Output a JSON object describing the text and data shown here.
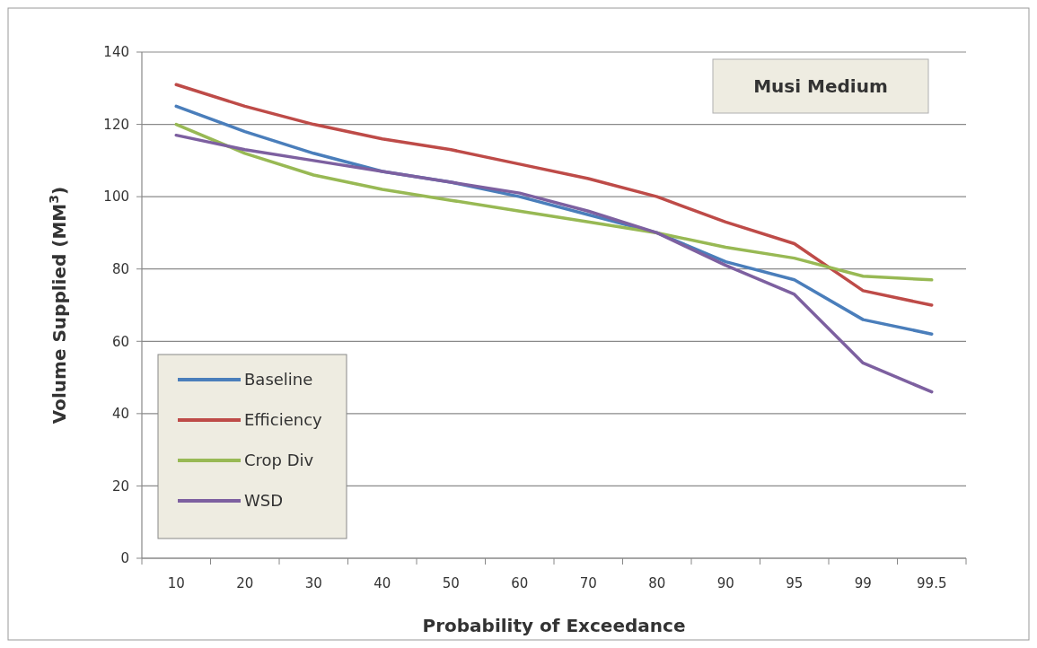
{
  "chart_data": {
    "type": "line",
    "title": "Musi Medium",
    "xlabel": "Probability of Exceedance",
    "ylabel": "Volume Supplied (MM$^{3}$)",
    "categories": [
      "10",
      "20",
      "30",
      "40",
      "50",
      "60",
      "70",
      "80",
      "90",
      "95",
      "99",
      "99.5"
    ],
    "ylim": [
      0,
      140
    ],
    "yticks": [
      0,
      20,
      40,
      60,
      80,
      100,
      120,
      140
    ],
    "grid": "y",
    "legend": "bottom left",
    "marker": "none",
    "line_style": "solid",
    "series": [
      {
        "name": "Baseline",
        "color": "#4a7ebb",
        "values": [
          125,
          118,
          112,
          107,
          104,
          100,
          95,
          90,
          82,
          77,
          66,
          62
        ]
      },
      {
        "name": "Efficiency",
        "color": "#be4b48",
        "values": [
          131,
          125,
          120,
          116,
          113,
          109,
          105,
          100,
          93,
          87,
          74,
          70
        ]
      },
      {
        "name": "Crop Div",
        "color": "#98b954",
        "values": [
          120,
          112,
          106,
          102,
          99,
          96,
          93,
          90,
          86,
          83,
          78,
          77
        ]
      },
      {
        "name": "WSD",
        "color": "#7d60a0",
        "values": [
          117,
          113,
          110,
          107,
          104,
          101,
          96,
          90,
          81,
          73,
          54,
          46
        ]
      }
    ]
  }
}
